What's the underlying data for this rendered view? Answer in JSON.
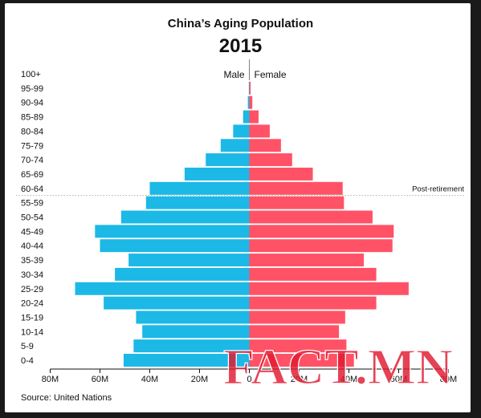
{
  "chart_data": {
    "type": "bar",
    "orientation": "horizontal",
    "title": "China’s Aging Population",
    "subtitle": "2015",
    "categories": [
      "100+",
      "95-99",
      "90-94",
      "85-89",
      "80-84",
      "75-79",
      "70-74",
      "65-69",
      "60-64",
      "55-59",
      "50-54",
      "45-49",
      "40-44",
      "35-39",
      "30-34",
      "25-29",
      "20-24",
      "15-19",
      "10-14",
      "5-9",
      "0-4"
    ],
    "series": [
      {
        "name": "Male",
        "color": "#1cb8e6",
        "values": [
          0.05,
          0.2,
          0.6,
          2.5,
          6.5,
          11.5,
          17.5,
          26,
          40,
          41.5,
          51.5,
          62,
          60,
          48.5,
          54,
          70,
          58.5,
          45.5,
          43,
          46.5,
          50.5
        ]
      },
      {
        "name": "Female",
        "color": "#ff5266",
        "values": [
          0.1,
          0.5,
          1.2,
          3.7,
          8.2,
          12.7,
          17.2,
          25.5,
          37.5,
          38,
          49.5,
          58,
          57.5,
          46,
          51,
          64,
          51,
          38.5,
          36,
          39,
          42
        ]
      }
    ],
    "x_ticks": [
      "80M",
      "60M",
      "40M",
      "20M",
      "0",
      "20M",
      "40M",
      "60M",
      "80M"
    ],
    "xlim": [
      -80,
      80
    ],
    "annotations": [
      {
        "label": "Post-retirement",
        "after_category": "60-64"
      }
    ],
    "grid": false
  },
  "source": "Source: United Nations",
  "watermark": "FACT.MN"
}
